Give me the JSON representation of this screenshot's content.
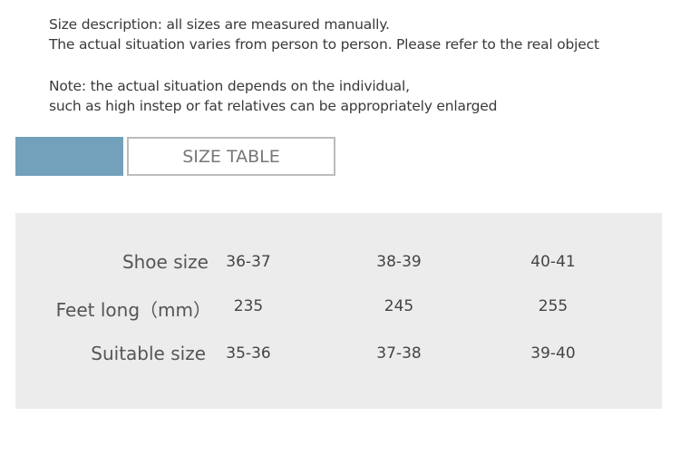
{
  "notes": {
    "line1": "Size description: all sizes are measured manually.",
    "line2": "The actual situation varies from person to person. Please refer to the real object",
    "line3": "Note: the actual situation depends on the individual,",
    "line4": "such as high instep or fat relatives can be appropriately enlarged"
  },
  "header": {
    "accent_color": "#73a0ba",
    "title": "SIZE TABLE"
  },
  "table": {
    "rows": [
      {
        "label": "Shoe size",
        "values": [
          "36-37",
          "38-39",
          "40-41"
        ]
      },
      {
        "label": "Feet long（mm）",
        "values": [
          "235",
          "245",
          "255"
        ]
      },
      {
        "label": "Suitable size",
        "values": [
          "35-36",
          "37-38",
          "39-40"
        ]
      }
    ]
  }
}
